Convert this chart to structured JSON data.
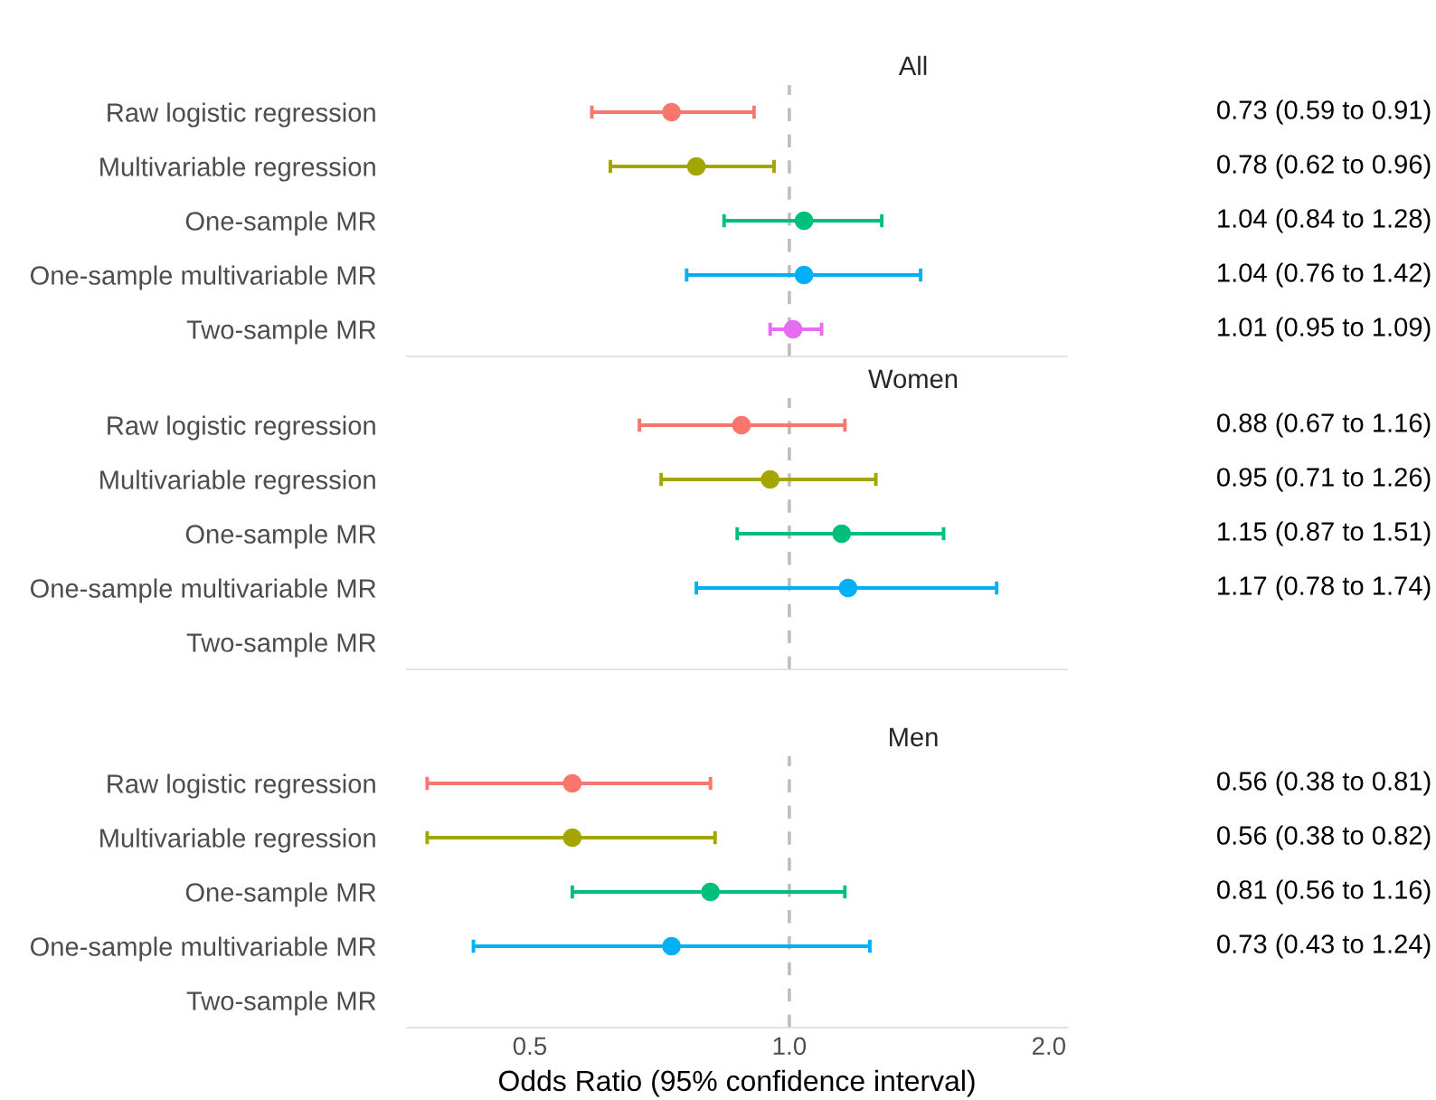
{
  "chart_data": [
    {
      "type": "scatter",
      "orientation": "horizontal",
      "title": "All",
      "categories": [
        "Raw logistic regression",
        "Multivariable regression",
        "One-sample MR",
        "One-sample multivariable MR",
        "Two-sample MR"
      ],
      "values": [
        0.73,
        0.78,
        1.04,
        1.04,
        1.01
      ],
      "errors": [
        [
          0.59,
          0.91
        ],
        [
          0.62,
          0.96
        ],
        [
          0.84,
          1.28
        ],
        [
          0.76,
          1.42
        ],
        [
          0.95,
          1.09
        ]
      ],
      "value_labels": [
        "0.73 (0.59 to 0.91)",
        "0.78 (0.62 to 0.96)",
        "1.04 (0.84 to 1.28)",
        "1.04 (0.76 to 1.42)",
        "1.01 (0.95 to 1.09)"
      ],
      "colors": [
        "#f8766d",
        "#a3a500",
        "#00bf7d",
        "#00b0f6",
        "#e76bf3"
      ],
      "xlim": [
        0.36,
        2.1
      ],
      "log": "x",
      "tick_labels": "y",
      "marker": "circle",
      "grid": false,
      "legend": false,
      "ref_lines": [
        {
          "axis": "x",
          "value": 1,
          "color": "#bebebe",
          "line_style": "dashed"
        }
      ]
    },
    {
      "type": "scatter",
      "orientation": "horizontal",
      "title": "Women",
      "categories": [
        "Raw logistic regression",
        "Multivariable regression",
        "One-sample MR",
        "One-sample multivariable MR",
        "Two-sample MR"
      ],
      "values": [
        0.88,
        0.95,
        1.15,
        1.17,
        null
      ],
      "errors": [
        [
          0.67,
          1.16
        ],
        [
          0.71,
          1.26
        ],
        [
          0.87,
          1.51
        ],
        [
          0.78,
          1.74
        ],
        null
      ],
      "value_labels": [
        "0.88 (0.67 to 1.16)",
        "0.95 (0.71 to 1.26)",
        "1.15 (0.87 to 1.51)",
        "1.17 (0.78 to 1.74)",
        null
      ],
      "colors": [
        "#f8766d",
        "#a3a500",
        "#00bf7d",
        "#00b0f6",
        "#e76bf3"
      ],
      "xlim": [
        0.36,
        2.1
      ],
      "log": "x",
      "tick_labels": "y",
      "marker": "circle",
      "grid": false,
      "legend": false,
      "ref_lines": [
        {
          "axis": "x",
          "value": 1,
          "color": "#bebebe",
          "line_style": "dashed"
        }
      ]
    },
    {
      "type": "scatter",
      "orientation": "horizontal",
      "title": "Men",
      "xlabel": "Odds Ratio (95% confidence interval)",
      "categories": [
        "Raw logistic regression",
        "Multivariable regression",
        "One-sample MR",
        "One-sample multivariable MR",
        "Two-sample MR"
      ],
      "values": [
        0.56,
        0.56,
        0.81,
        0.73,
        null
      ],
      "errors": [
        [
          0.38,
          0.81
        ],
        [
          0.38,
          0.82
        ],
        [
          0.56,
          1.16
        ],
        [
          0.43,
          1.24
        ],
        null
      ],
      "value_labels": [
        "0.56 (0.38 to 0.81)",
        "0.56 (0.38 to 0.82)",
        "0.81 (0.56 to 1.16)",
        "0.73 (0.43 to 1.24)",
        null
      ],
      "colors": [
        "#f8766d",
        "#a3a500",
        "#00bf7d",
        "#00b0f6",
        "#e76bf3"
      ],
      "xlim": [
        0.36,
        2.1
      ],
      "xticks": [
        {
          "value": 0.5,
          "label": "0.5"
        },
        {
          "value": 1,
          "label": "1.0"
        },
        {
          "value": 2,
          "label": "2.0"
        }
      ],
      "log": "x",
      "marker": "circle",
      "grid": false,
      "legend": false,
      "ref_lines": [
        {
          "axis": "x",
          "value": 1,
          "color": "#bebebe",
          "line_style": "dashed"
        }
      ]
    }
  ]
}
